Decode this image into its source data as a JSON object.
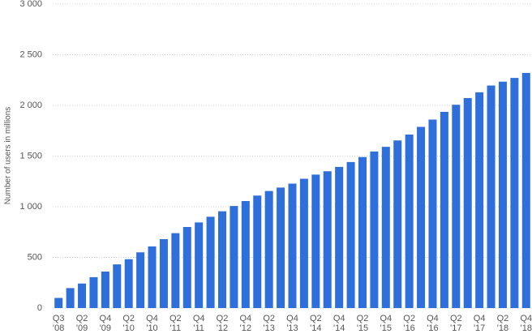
{
  "chart_data": {
    "type": "bar",
    "y_label": "Number of users in millions",
    "categories": [
      "Q3 '08",
      null,
      "Q2 '09",
      null,
      "Q4 '09",
      null,
      "Q2 '10",
      null,
      "Q4 '10",
      null,
      "Q2 '11",
      null,
      "Q4 '11",
      null,
      "Q2 '12",
      null,
      "Q4 '12",
      null,
      "Q2 '13",
      null,
      "Q4 '13",
      null,
      "Q2 '14",
      null,
      "Q4 '14",
      null,
      "Q2 '15",
      null,
      "Q4 '15",
      null,
      "Q2 '16",
      null,
      "Q4 '16",
      null,
      "Q2 '17",
      null,
      "Q4 '17",
      null,
      "Q2 '18",
      null,
      "Q4 '18"
    ],
    "values": [
      100,
      197,
      242,
      305,
      360,
      431,
      482,
      550,
      608,
      680,
      739,
      800,
      845,
      901,
      955,
      1007,
      1056,
      1110,
      1155,
      1189,
      1228,
      1276,
      1317,
      1350,
      1393,
      1441,
      1490,
      1545,
      1591,
      1654,
      1712,
      1788,
      1860,
      1936,
      2006,
      2072,
      2129,
      2196,
      2234,
      2271,
      2320
    ],
    "color": "#2f6fdc",
    "ylim": [
      0,
      3000
    ],
    "yticks": [
      0,
      500,
      {
        "value": 1000,
        "label": "1 000"
      },
      {
        "value": 1500,
        "label": "1 500"
      },
      {
        "value": 2000,
        "label": "2 000"
      },
      {
        "value": 2500,
        "label": "2 500"
      },
      {
        "value": 3000,
        "label": "3 000"
      }
    ],
    "grid": true
  }
}
